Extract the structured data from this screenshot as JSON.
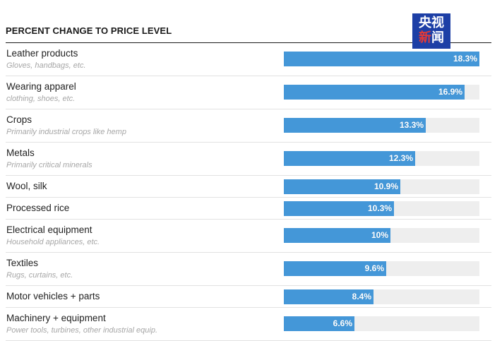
{
  "header": {
    "title": "PERCENT CHANGE TO PRICE LEVEL"
  },
  "logo": {
    "line1": "央视",
    "line2_a": "新",
    "line2_b": "闻"
  },
  "colors": {
    "bar": "#4497d8",
    "track": "#eeeeee",
    "logo_bg": "#1d3fa6",
    "logo_accent": "#e53935"
  },
  "chart_data": {
    "type": "bar",
    "orientation": "horizontal",
    "title": "PERCENT CHANGE TO PRICE LEVEL",
    "xlim": [
      0,
      18.3
    ],
    "categories": [
      {
        "label": "Leather products",
        "sublabel": "Gloves, handbags, etc.",
        "value": 18.3,
        "value_label": "18.3%"
      },
      {
        "label": "Wearing apparel",
        "sublabel": "clothing, shoes, etc.",
        "value": 16.9,
        "value_label": "16.9%"
      },
      {
        "label": "Crops",
        "sublabel": "Primarily industrial crops like hemp",
        "value": 13.3,
        "value_label": "13.3%"
      },
      {
        "label": "Metals",
        "sublabel": "Primarily critical minerals",
        "value": 12.3,
        "value_label": "12.3%"
      },
      {
        "label": "Wool, silk",
        "sublabel": "",
        "value": 10.9,
        "value_label": "10.9%"
      },
      {
        "label": "Processed rice",
        "sublabel": "",
        "value": 10.3,
        "value_label": "10.3%"
      },
      {
        "label": "Electrical equipment",
        "sublabel": "Household appliances, etc.",
        "value": 10,
        "value_label": "10%"
      },
      {
        "label": "Textiles",
        "sublabel": "Rugs, curtains, etc.",
        "value": 9.6,
        "value_label": "9.6%"
      },
      {
        "label": "Motor vehicles + parts",
        "sublabel": "",
        "value": 8.4,
        "value_label": "8.4%"
      },
      {
        "label": "Machinery + equipment",
        "sublabel": "Power tools, turbines, other industrial equip.",
        "value": 6.6,
        "value_label": "6.6%"
      }
    ]
  }
}
